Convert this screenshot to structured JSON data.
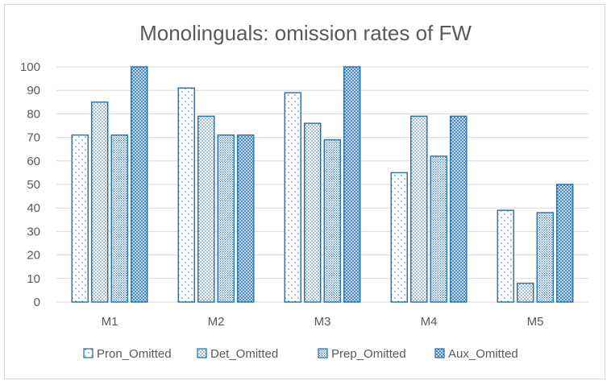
{
  "chart_data": {
    "type": "bar",
    "title": "Monolinguals: omission rates of FW",
    "xlabel": "",
    "ylabel": "",
    "categories": [
      "M1",
      "M2",
      "M3",
      "M4",
      "M5"
    ],
    "ylim": [
      0,
      100
    ],
    "yticks": [
      "0",
      "10",
      "20",
      "30",
      "40",
      "50",
      "60",
      "70",
      "80",
      "90",
      "100"
    ],
    "grid": true,
    "legend_position": "bottom",
    "series": [
      {
        "name": "Pron_Omitted",
        "values": [
          71,
          91,
          89,
          55,
          39
        ],
        "pattern": "sparse-dots"
      },
      {
        "name": "Det_Omitted",
        "values": [
          85,
          79,
          76,
          79,
          8
        ],
        "pattern": "medium-dots"
      },
      {
        "name": "Prep_Omitted",
        "values": [
          71,
          71,
          69,
          62,
          38
        ],
        "pattern": "dense-grid"
      },
      {
        "name": "Aux_Omitted",
        "values": [
          100,
          71,
          100,
          79,
          50
        ],
        "pattern": "solid-crosshatch"
      }
    ],
    "colors": {
      "bar_stroke": "#2e75b6",
      "fill_dark": "#2e75b6",
      "grid": "#d9d9d9",
      "text": "#595959"
    }
  }
}
